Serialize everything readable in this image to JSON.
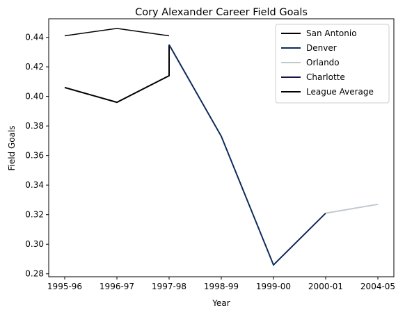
{
  "chart_data": {
    "type": "line",
    "title": "Cory Alexander Career Field Goals",
    "xlabel": "Year",
    "ylabel": "Field Goals",
    "categories": [
      "1995-96",
      "1996-97",
      "1997-98",
      "1998-99",
      "1999-00",
      "2000-01",
      "2004-05"
    ],
    "yticks": [
      "0.28",
      "0.30",
      "0.32",
      "0.34",
      "0.36",
      "0.38",
      "0.40",
      "0.42",
      "0.44"
    ],
    "ylim": [
      0.278,
      0.4525
    ],
    "grid": false,
    "legend_position": "top-right",
    "series": [
      {
        "name": "San Antonio",
        "color": "#000000",
        "width": 2,
        "points": [
          [
            "1995-96",
            0.406
          ],
          [
            "1996-97",
            0.396
          ],
          [
            "1997-98",
            0.414
          ],
          [
            "1997-98",
            0.435
          ]
        ]
      },
      {
        "name": "Denver",
        "color": "#0e2a5a",
        "width": 2,
        "points": [
          [
            "1997-98",
            0.435
          ],
          [
            "1998-99",
            0.373
          ],
          [
            "1999-00",
            0.286
          ],
          [
            "2000-01",
            0.321
          ]
        ]
      },
      {
        "name": "Orlando",
        "color": "#c0c8d0",
        "width": 2,
        "points": [
          [
            "2000-01",
            0.321
          ],
          [
            "2004-05",
            0.327
          ]
        ]
      },
      {
        "name": "Charlotte",
        "color": "#1d1148",
        "width": 2,
        "points": []
      },
      {
        "name": "League Average",
        "color": "#000000",
        "width": 1.5,
        "points": [
          [
            "1995-96",
            0.441
          ],
          [
            "1996-97",
            0.446
          ],
          [
            "1997-98",
            0.441
          ]
        ]
      }
    ]
  }
}
